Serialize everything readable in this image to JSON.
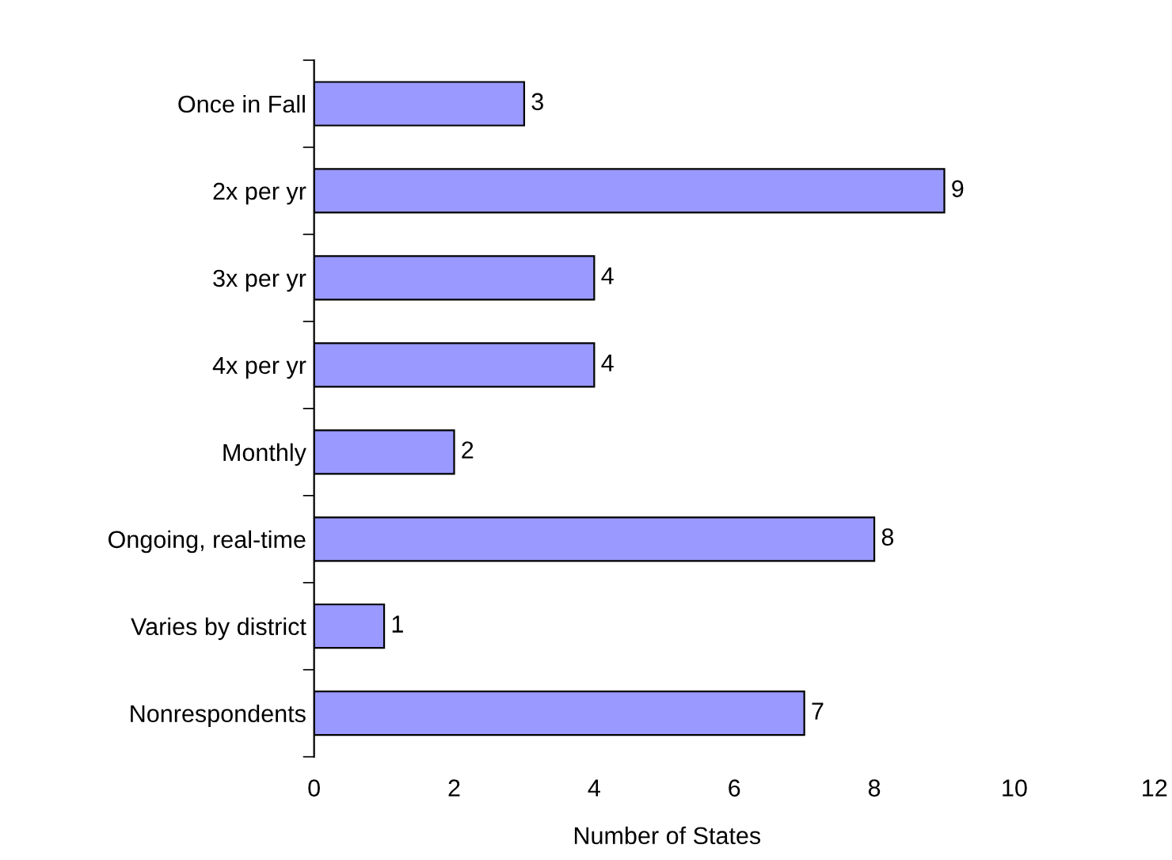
{
  "chart_data": {
    "type": "bar",
    "orientation": "horizontal",
    "xlabel": "Number of States",
    "categories": [
      "Once in Fall",
      "2x per yr",
      "3x per yr",
      "4x per yr",
      "Monthly",
      "Ongoing, real-time",
      "Varies by district",
      "Nonrespondents"
    ],
    "values": [
      3,
      9,
      4,
      4,
      2,
      8,
      1,
      7
    ],
    "color": "#9999ff",
    "xlim": [
      0,
      12
    ],
    "xticks": [
      0,
      2,
      4,
      6,
      8,
      10,
      12
    ],
    "data_labels": true
  }
}
